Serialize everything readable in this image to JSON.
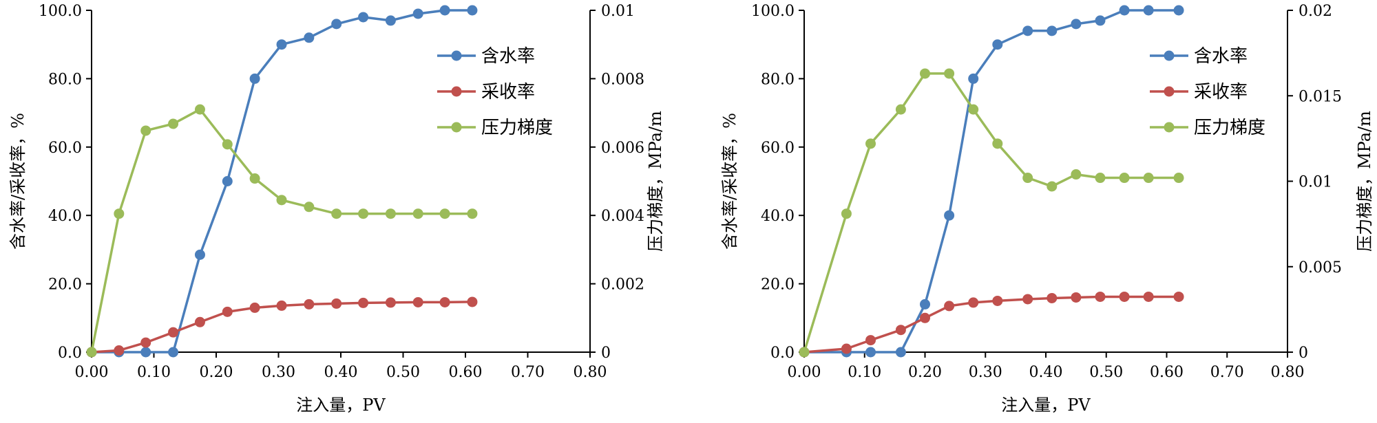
{
  "chart_data": [
    {
      "type": "line",
      "xlabel": "注入量，PV",
      "ylabel": "含水率/采收率，%",
      "y2label": "压力梯度，MPa/m",
      "xlim": [
        0,
        0.8
      ],
      "ylim": [
        0,
        100
      ],
      "y2lim": [
        0,
        0.01
      ],
      "x_ticks": [
        "0.00",
        "0.10",
        "0.20",
        "0.30",
        "0.40",
        "0.50",
        "0.60",
        "0.70",
        "0.80"
      ],
      "y_ticks": [
        "0.0",
        "20.0",
        "40.0",
        "60.0",
        "80.0",
        "100.0"
      ],
      "y2_ticks": [
        "0",
        "0.002",
        "0.004",
        "0.006",
        "0.008",
        "0.01"
      ],
      "legend_position": "right",
      "series": [
        {
          "name": "含水率",
          "axis": "left",
          "color": "#4a7ebb",
          "x": [
            0,
            0.044,
            0.087,
            0.131,
            0.174,
            0.218,
            0.262,
            0.305,
            0.349,
            0.393,
            0.436,
            0.48,
            0.524,
            0.567,
            0.611
          ],
          "y": [
            0,
            0,
            0,
            0,
            28.5,
            50,
            80,
            90,
            92,
            96,
            98,
            97,
            99,
            100,
            100
          ]
        },
        {
          "name": "采收率",
          "axis": "left",
          "color": "#c0504d",
          "x": [
            0,
            0.044,
            0.087,
            0.131,
            0.174,
            0.218,
            0.262,
            0.305,
            0.349,
            0.393,
            0.436,
            0.48,
            0.524,
            0.567,
            0.611
          ],
          "y": [
            0,
            0.5,
            2.8,
            5.8,
            8.8,
            11.8,
            13,
            13.6,
            14,
            14.2,
            14.4,
            14.5,
            14.6,
            14.6,
            14.7
          ]
        },
        {
          "name": "压力梯度",
          "axis": "right",
          "color": "#9bbb59",
          "x": [
            0,
            0.044,
            0.087,
            0.131,
            0.174,
            0.218,
            0.262,
            0.305,
            0.349,
            0.393,
            0.436,
            0.48,
            0.524,
            0.567,
            0.611
          ],
          "y": [
            0,
            0.00405,
            0.00648,
            0.00668,
            0.0071,
            0.00608,
            0.00508,
            0.00445,
            0.00425,
            0.00405,
            0.00405,
            0.00405,
            0.00405,
            0.00405,
            0.00405
          ]
        }
      ]
    },
    {
      "type": "line",
      "xlabel": "注入量，PV",
      "ylabel": "含水率/采收率，%",
      "y2label": "压力梯度，MPa/m",
      "xlim": [
        0,
        0.8
      ],
      "ylim": [
        0,
        100
      ],
      "y2lim": [
        0,
        0.02
      ],
      "x_ticks": [
        "0.00",
        "0.10",
        "0.20",
        "0.30",
        "0.40",
        "0.50",
        "0.60",
        "0.70",
        "0.80"
      ],
      "y_ticks": [
        "0.0",
        "20.0",
        "40.0",
        "60.0",
        "80.0",
        "100.0"
      ],
      "y2_ticks": [
        "0",
        "0.005",
        "0.01",
        "0.015",
        "0.02"
      ],
      "legend_position": "right",
      "series": [
        {
          "name": "含水率",
          "axis": "left",
          "color": "#4a7ebb",
          "x": [
            0,
            0.07,
            0.11,
            0.16,
            0.2,
            0.24,
            0.28,
            0.32,
            0.37,
            0.41,
            0.45,
            0.49,
            0.53,
            0.57,
            0.62
          ],
          "y": [
            0,
            0,
            0,
            0,
            14,
            40,
            80,
            90,
            94,
            94,
            96,
            97,
            100,
            100,
            100
          ]
        },
        {
          "name": "采收率",
          "axis": "left",
          "color": "#c0504d",
          "x": [
            0,
            0.07,
            0.11,
            0.16,
            0.2,
            0.24,
            0.28,
            0.32,
            0.37,
            0.41,
            0.45,
            0.49,
            0.53,
            0.57,
            0.62
          ],
          "y": [
            0,
            1,
            3.5,
            6.5,
            10,
            13.5,
            14.5,
            15,
            15.5,
            15.8,
            16,
            16.2,
            16.2,
            16.2,
            16.2
          ]
        },
        {
          "name": "压力梯度",
          "axis": "right",
          "color": "#9bbb59",
          "x": [
            0,
            0.07,
            0.11,
            0.16,
            0.2,
            0.24,
            0.28,
            0.32,
            0.37,
            0.41,
            0.45,
            0.49,
            0.53,
            0.57,
            0.62
          ],
          "y": [
            0,
            0.0081,
            0.0122,
            0.0142,
            0.0163,
            0.0163,
            0.0142,
            0.0122,
            0.0102,
            0.0097,
            0.0104,
            0.0102,
            0.0102,
            0.0102,
            0.0102
          ]
        }
      ]
    }
  ]
}
